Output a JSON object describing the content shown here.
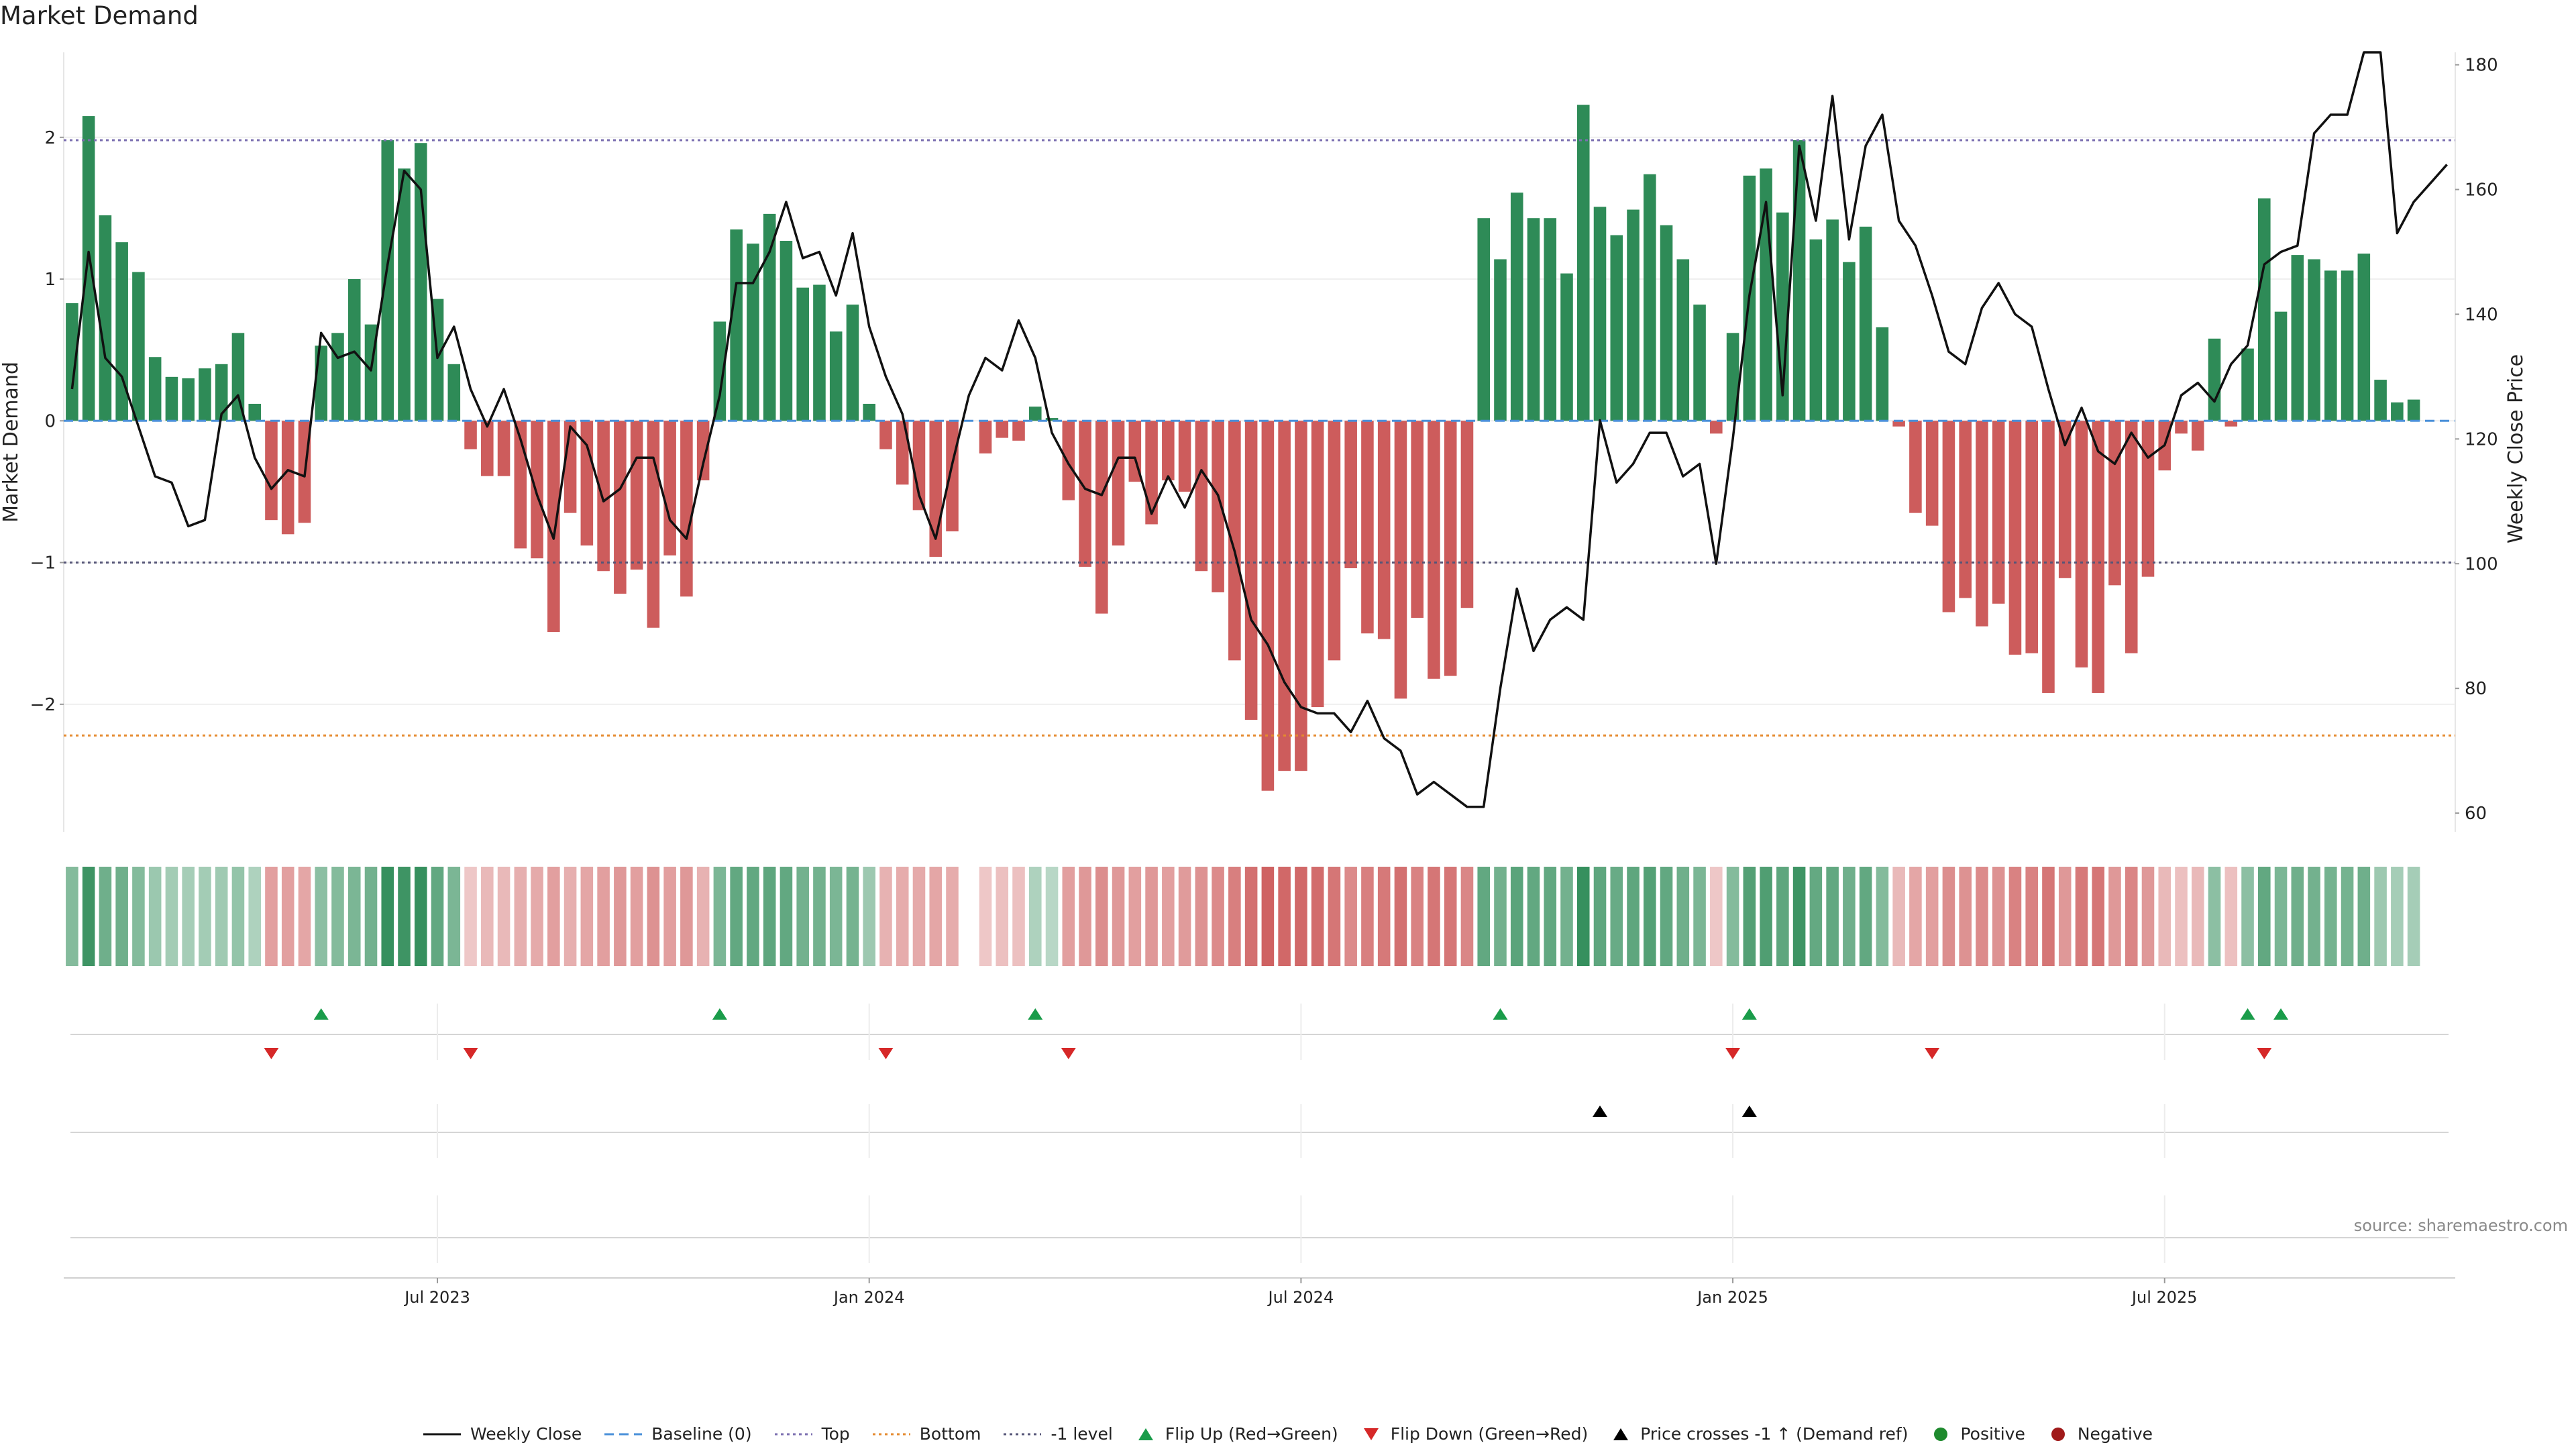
{
  "chart_data": {
    "type": "bar",
    "title": "Market Demand",
    "ylabel": "Market Demand",
    "y2label": "Weekly Close Price",
    "ylim": [
      -2.9,
      2.6
    ],
    "y2lim": [
      57,
      182
    ],
    "yticks": [
      "2",
      "1",
      "0",
      "−1",
      "−2"
    ],
    "ytick_values": [
      2,
      1,
      0,
      -1,
      -2
    ],
    "y2ticks": [
      "180",
      "160",
      "140",
      "120",
      "100",
      "80",
      "60"
    ],
    "y2tick_values": [
      180,
      160,
      140,
      120,
      100,
      80,
      60
    ],
    "xticks": [
      "Jul 2023",
      "Jan 2024",
      "Jul 2024",
      "Jan 2025",
      "Jul 2025"
    ],
    "xtick_index": [
      22,
      48,
      74,
      100,
      126
    ],
    "n_weeks": 144,
    "reference_lines": {
      "top": 1.98,
      "bottom": -2.22,
      "minus_one": -1.0,
      "baseline": 0
    },
    "demand": [
      0.83,
      2.15,
      1.45,
      1.26,
      1.05,
      0.45,
      0.31,
      0.3,
      0.37,
      0.4,
      0.62,
      0.12,
      -0.7,
      -0.8,
      -0.72,
      0.53,
      0.62,
      1.0,
      0.68,
      1.98,
      1.78,
      1.96,
      0.86,
      0.4,
      -0.2,
      -0.39,
      -0.39,
      -0.9,
      -0.97,
      -1.49,
      -0.65,
      -0.88,
      -1.06,
      -1.22,
      -1.05,
      -1.46,
      -0.95,
      -1.24,
      -0.42,
      0.7,
      1.35,
      1.25,
      1.46,
      1.27,
      0.94,
      0.96,
      0.63,
      0.82,
      0.12,
      -0.2,
      -0.45,
      -0.63,
      -0.96,
      -0.78,
      0.0,
      -0.23,
      -0.12,
      -0.14,
      0.1,
      0.02,
      -0.56,
      -1.03,
      -1.36,
      -0.88,
      -0.43,
      -0.73,
      -0.42,
      -0.5,
      -1.06,
      -1.21,
      -1.69,
      -2.11,
      -2.61,
      -2.47,
      -2.47,
      -2.02,
      -1.69,
      -1.04,
      -1.5,
      -1.54,
      -1.96,
      -1.39,
      -1.82,
      -1.8,
      -1.32,
      1.43,
      1.14,
      1.61,
      1.43,
      1.43,
      1.04,
      2.23,
      1.51,
      1.31,
      1.49,
      1.74,
      1.38,
      1.14,
      0.82,
      -0.09,
      0.62,
      1.73,
      1.78,
      1.47,
      1.98,
      1.28,
      1.42,
      1.12,
      1.37,
      0.66,
      -0.04,
      -0.65,
      -0.74,
      -1.35,
      -1.25,
      -1.45,
      -1.29,
      -1.65,
      -1.64,
      -1.92,
      -1.11,
      -1.74,
      -1.92,
      -1.16,
      -1.64,
      -1.1,
      -0.35,
      -0.09,
      -0.21,
      0.58,
      -0.04,
      0.51,
      1.57,
      0.77,
      1.17,
      1.14,
      1.06,
      1.06,
      1.18,
      0.29,
      0.13,
      0.15
    ],
    "weekly_close": [
      128,
      150,
      133,
      130,
      122,
      114,
      113,
      106,
      107,
      124,
      127,
      117,
      112,
      115,
      114,
      137,
      133,
      134,
      131,
      148,
      163,
      160,
      133,
      138,
      128,
      122,
      128,
      120,
      111,
      104,
      122,
      119,
      110,
      112,
      117,
      117,
      107,
      104,
      116,
      127,
      145,
      145,
      150,
      158,
      149,
      150,
      143,
      153,
      138,
      130,
      124,
      111,
      104,
      116,
      127,
      133,
      131,
      139,
      133,
      121,
      116,
      112,
      111,
      117,
      117,
      108,
      114,
      109,
      115,
      111,
      102,
      91,
      87,
      81,
      77,
      76,
      76,
      73,
      78,
      72,
      70,
      63,
      65,
      63,
      61,
      61,
      80,
      96,
      86,
      91,
      93,
      91,
      123,
      113,
      116,
      121,
      121,
      114,
      116,
      100,
      120,
      143,
      158,
      127,
      167,
      155,
      175,
      152,
      167,
      172,
      155,
      151,
      143,
      134,
      132,
      141,
      145,
      140,
      138,
      128,
      119,
      125,
      118,
      116,
      121,
      117,
      119,
      127,
      129,
      126,
      132,
      135,
      148,
      150,
      151,
      169,
      172,
      172,
      182,
      182,
      153,
      158,
      161,
      164
    ],
    "strip_values": [
      0.5,
      0.9,
      0.62,
      0.62,
      0.5,
      0.36,
      0.32,
      0.3,
      0.32,
      0.34,
      0.4,
      0.25,
      -0.5,
      -0.5,
      -0.45,
      0.45,
      0.5,
      0.55,
      0.6,
      0.95,
      0.9,
      0.95,
      0.7,
      0.55,
      -0.2,
      -0.3,
      -0.3,
      -0.38,
      -0.42,
      -0.5,
      -0.38,
      -0.45,
      -0.5,
      -0.55,
      -0.5,
      -0.6,
      -0.5,
      -0.55,
      -0.35,
      0.55,
      0.7,
      0.7,
      0.72,
      0.7,
      0.6,
      0.6,
      0.55,
      0.58,
      0.35,
      -0.35,
      -0.4,
      -0.42,
      -0.45,
      -0.4,
      null,
      -0.2,
      -0.25,
      -0.25,
      0.25,
      0.2,
      -0.5,
      -0.55,
      -0.62,
      -0.55,
      -0.5,
      -0.55,
      -0.5,
      -0.52,
      -0.6,
      -0.65,
      -0.75,
      -0.85,
      -0.95,
      -0.92,
      -0.92,
      -0.88,
      -0.8,
      -0.65,
      -0.75,
      -0.78,
      -0.85,
      -0.72,
      -0.8,
      -0.8,
      -0.68,
      0.7,
      0.6,
      0.75,
      0.7,
      0.7,
      0.6,
      0.95,
      0.72,
      0.66,
      0.72,
      0.78,
      0.7,
      0.62,
      0.55,
      -0.2,
      0.5,
      0.78,
      0.8,
      0.72,
      0.9,
      0.68,
      0.7,
      0.62,
      0.7,
      0.5,
      -0.3,
      -0.45,
      -0.5,
      -0.62,
      -0.6,
      -0.65,
      -0.6,
      -0.72,
      -0.72,
      -0.8,
      -0.55,
      -0.78,
      -0.8,
      -0.55,
      -0.7,
      -0.55,
      -0.3,
      -0.25,
      -0.3,
      0.45,
      -0.25,
      0.45,
      0.7,
      0.55,
      0.62,
      0.6,
      0.58,
      0.58,
      0.62,
      0.35,
      0.3,
      0.3
    ],
    "flip_up_weeks": [
      15,
      39,
      58,
      86,
      101,
      131,
      133
    ],
    "flip_down_weeks": [
      12,
      24,
      49,
      60,
      100,
      112,
      132
    ],
    "price_cross_weeks": [
      92,
      101
    ],
    "colors": {
      "positive": "#2e8b57",
      "negative": "#cd5c5c",
      "line": "#111111",
      "baseline": "#4a90d9",
      "top": "#7b6fb0",
      "bottom": "#e58a2e",
      "minus_one": "#555577",
      "flip_up": "#1a9c4a",
      "flip_down": "#d62828",
      "cross": "#000000",
      "legend_positive": "#1e8a2e",
      "legend_negative": "#a01a1a"
    }
  },
  "source": "source: sharemaestro.com",
  "legend": [
    {
      "name": "line",
      "label": "Weekly Close"
    },
    {
      "name": "baseline",
      "label": "Baseline (0)"
    },
    {
      "name": "top",
      "label": "Top"
    },
    {
      "name": "bottom",
      "label": "Bottom"
    },
    {
      "name": "minus-one",
      "label": "-1 level"
    },
    {
      "name": "flip-up",
      "label": "Flip Up (Red→Green)"
    },
    {
      "name": "flip-down",
      "label": "Flip Down (Green→Red)"
    },
    {
      "name": "cross",
      "label": "Price crosses -1 ↑ (Demand ref)"
    },
    {
      "name": "positive",
      "label": "Positive"
    },
    {
      "name": "negative",
      "label": "Negative"
    }
  ]
}
